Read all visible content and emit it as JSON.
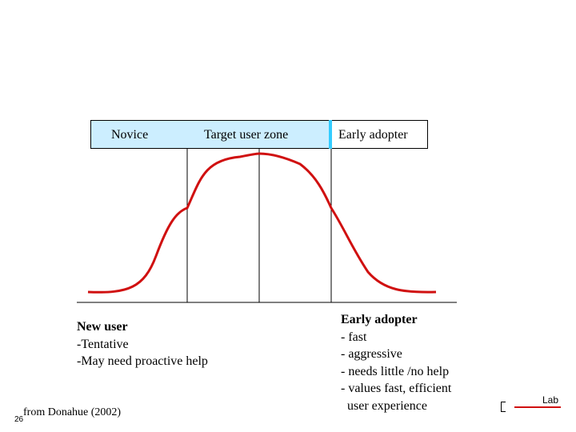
{
  "header": {
    "novice": "Novice",
    "target": "Target user zone",
    "early": "Early adopter"
  },
  "left_block": {
    "title": "New user",
    "lines": [
      "-Tentative",
      "-May need proactive help"
    ]
  },
  "right_block": {
    "title": "Early adopter",
    "lines": [
      "- fast",
      "- aggressive",
      "- needs little /no help",
      "- values fast, efficient",
      "  user experience"
    ]
  },
  "footer": {
    "page_number": "26",
    "source": "from Donahue (2002)"
  },
  "logo": {
    "text": "Lab"
  },
  "colors": {
    "curve": "#d01010",
    "header_fill": "#cceeff",
    "divider": "#33ccff"
  }
}
